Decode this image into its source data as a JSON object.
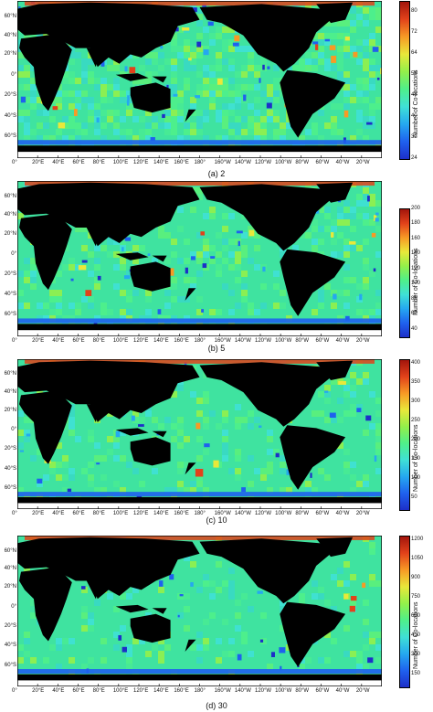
{
  "colorbar_label": "Number of Co-locations",
  "colors": {
    "land": "#000000",
    "ocean_base": "#3ee6a0",
    "high": "#d92b12",
    "low": "#1f3cf0"
  },
  "lon_labels": [
    "0°",
    "20°E",
    "40°E",
    "60°E",
    "80°E",
    "100°E",
    "120°E",
    "140°E",
    "160°E",
    "180°",
    "160°W",
    "140°W",
    "120°W",
    "100°W",
    "80°W",
    "60°W",
    "40°W",
    "20°W"
  ],
  "panels": [
    {
      "caption": "(a) 2",
      "lat_labels": [
        "60°N",
        "40°N",
        "20°N",
        "0°",
        "20°S",
        "40°S",
        "60°S"
      ],
      "cbar_ticks": [
        "80",
        "72",
        "64",
        "56",
        "48",
        "40",
        "32",
        "24"
      ],
      "cbar_min": 24,
      "cbar_max": 84
    },
    {
      "caption": "(b) 5",
      "lat_labels": [
        "60°N",
        "40°N",
        "20°N",
        "0°",
        "20°S",
        "40°S",
        "60°S"
      ],
      "cbar_ticks": [
        "200",
        "180",
        "160",
        "140",
        "120",
        "100",
        "80",
        "60",
        "40"
      ],
      "cbar_min": 30,
      "cbar_max": 200
    },
    {
      "caption": "(c) 10",
      "lat_labels": [
        "60°N",
        "40°N",
        "20°N",
        "0°",
        "20°S",
        "40°S",
        "60°S"
      ],
      "cbar_ticks": [
        "400",
        "350",
        "300",
        "250",
        "200",
        "150",
        "100",
        "50"
      ],
      "cbar_min": 20,
      "cbar_max": 410
    },
    {
      "caption": "(d) 30",
      "lat_labels": [
        "60°N",
        "40°N",
        "20°N",
        "0°",
        "20°S",
        "40°S",
        "60°S"
      ],
      "cbar_ticks": [
        "1200",
        "1050",
        "900",
        "750",
        "600",
        "450",
        "300",
        "150"
      ],
      "cbar_min": 50,
      "cbar_max": 1230
    }
  ]
}
